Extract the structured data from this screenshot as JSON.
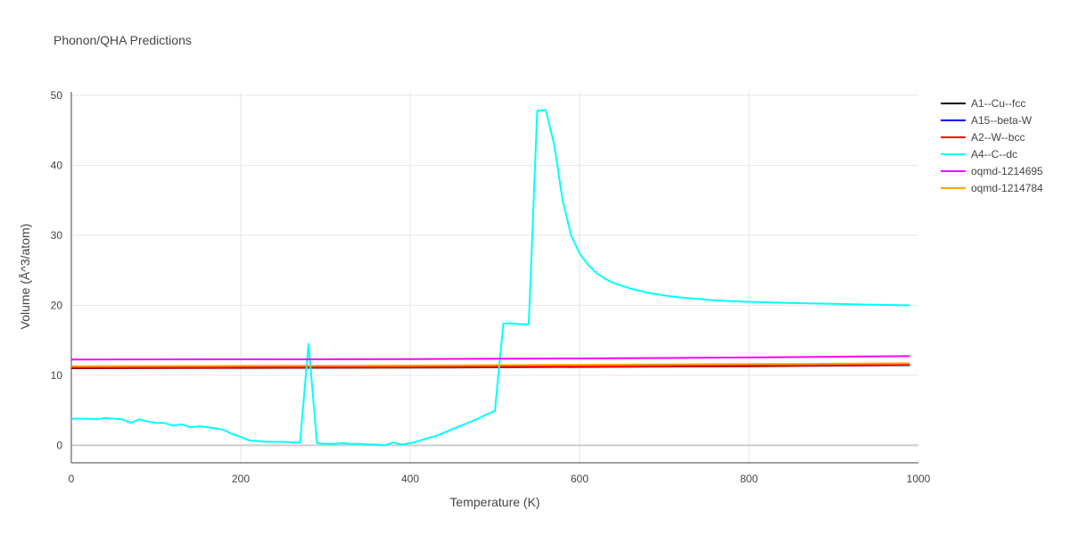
{
  "chart_data": {
    "type": "line",
    "title": "Phonon/QHA Predictions",
    "xlabel": "Temperature (K)",
    "ylabel": "Volume (Å^3/atom)",
    "xlim": [
      0,
      1000
    ],
    "ylim": [
      -2.5,
      50.5
    ],
    "xticks": [
      0,
      200,
      400,
      600,
      800,
      1000
    ],
    "yticks": [
      0,
      10,
      20,
      30,
      40,
      50
    ],
    "grid": true,
    "legend_position": "right",
    "series": [
      {
        "name": "A1--Cu--fcc",
        "color": "#000000",
        "x": [
          0,
          200,
          400,
          600,
          800,
          990
        ],
        "values": [
          11.0,
          11.05,
          11.1,
          11.2,
          11.3,
          11.45
        ]
      },
      {
        "name": "A15--beta-W",
        "color": "#0000ff",
        "x": [
          0,
          200,
          400,
          600,
          800,
          990
        ],
        "values": [
          11.1,
          11.15,
          11.2,
          11.3,
          11.4,
          11.5
        ]
      },
      {
        "name": "A2--W--bcc",
        "color": "#ff0000",
        "x": [
          0,
          200,
          400,
          600,
          800,
          990
        ],
        "values": [
          11.05,
          11.1,
          11.15,
          11.25,
          11.35,
          11.5
        ]
      },
      {
        "name": "A4--C--dc",
        "color": "#00ffff",
        "x": [
          0,
          20,
          30,
          40,
          50,
          60,
          70,
          80,
          90,
          100,
          110,
          120,
          130,
          140,
          150,
          160,
          170,
          180,
          190,
          200,
          210,
          220,
          230,
          240,
          250,
          260,
          270,
          280,
          290,
          300,
          310,
          320,
          330,
          340,
          350,
          360,
          370,
          380,
          390,
          400,
          410,
          420,
          430,
          440,
          450,
          460,
          470,
          480,
          490,
          500,
          510,
          520,
          530,
          540,
          550,
          560,
          570,
          580,
          590,
          600,
          610,
          620,
          630,
          640,
          650,
          660,
          670,
          680,
          690,
          700,
          720,
          740,
          760,
          780,
          800,
          830,
          860,
          900,
          940,
          990
        ],
        "values": [
          3.8,
          3.8,
          3.7,
          3.9,
          3.8,
          3.7,
          3.2,
          3.7,
          3.4,
          3.2,
          3.2,
          2.8,
          3.0,
          2.6,
          2.7,
          2.6,
          2.4,
          2.2,
          1.6,
          1.2,
          0.7,
          0.6,
          0.5,
          0.5,
          0.5,
          0.4,
          0.4,
          14.5,
          0.3,
          0.2,
          0.2,
          0.3,
          0.2,
          0.2,
          0.1,
          0.1,
          0.0,
          0.4,
          0.1,
          0.3,
          0.6,
          1.0,
          1.3,
          1.8,
          2.3,
          2.8,
          3.3,
          3.8,
          4.4,
          4.9,
          17.4,
          17.4,
          17.3,
          17.3,
          47.8,
          47.9,
          43.0,
          35.0,
          30.0,
          27.4,
          25.8,
          24.6,
          23.8,
          23.2,
          22.8,
          22.4,
          22.1,
          21.8,
          21.6,
          21.4,
          21.1,
          20.9,
          20.7,
          20.6,
          20.5,
          20.4,
          20.3,
          20.2,
          20.1,
          20.0
        ]
      },
      {
        "name": "oqmd-1214695",
        "color": "#ff00ff",
        "x": [
          0,
          200,
          400,
          600,
          800,
          990
        ],
        "values": [
          12.25,
          12.28,
          12.32,
          12.4,
          12.55,
          12.75
        ]
      },
      {
        "name": "oqmd-1214784",
        "color": "#ffa500",
        "x": [
          0,
          200,
          400,
          600,
          800,
          990
        ],
        "values": [
          11.3,
          11.35,
          11.4,
          11.5,
          11.6,
          11.7
        ]
      }
    ]
  }
}
